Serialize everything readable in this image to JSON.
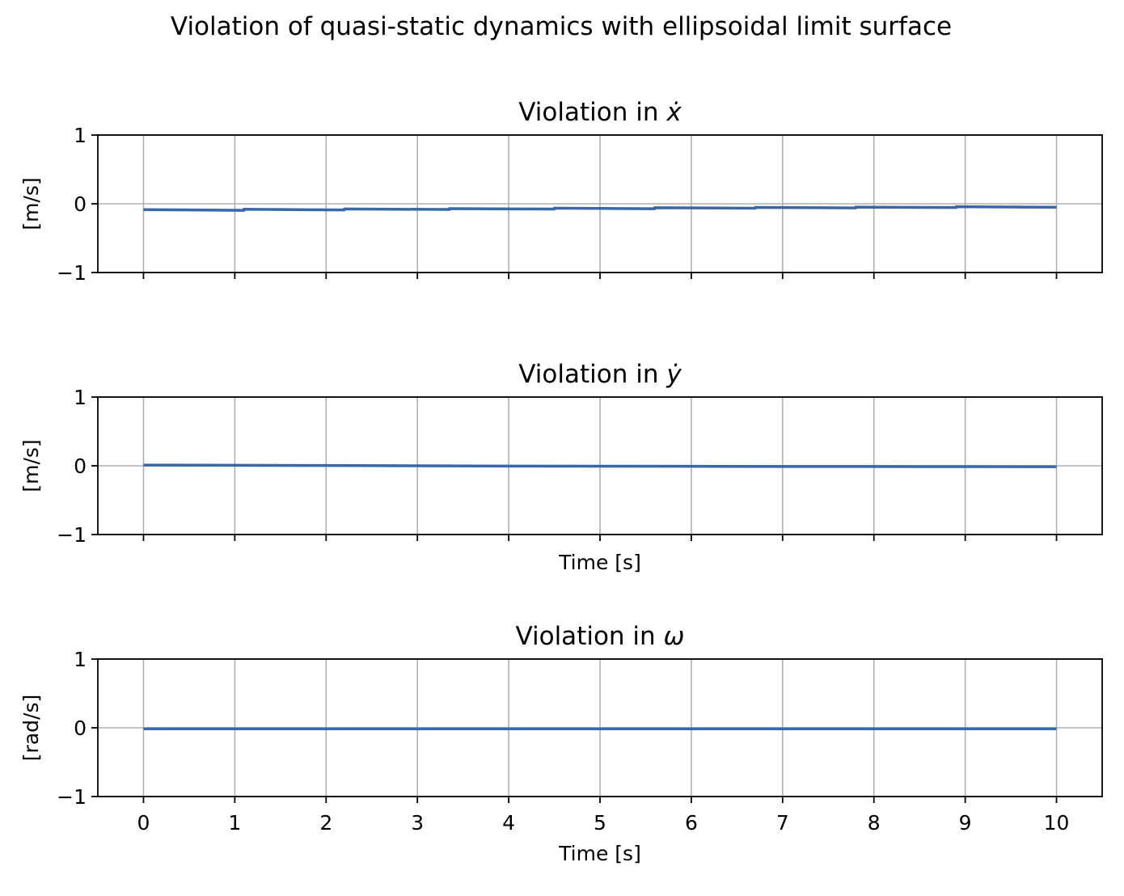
{
  "figure": {
    "title": "Violation of quasi-static dynamics with ellipsoidal limit surface"
  },
  "colors": {
    "line": "#3a67a8",
    "grid": "#b0b0b0",
    "axes": "#000000"
  },
  "chart_data": [
    {
      "type": "line",
      "title_prefix": "Violation in ",
      "title_symbol": "ẋ",
      "ylabel": "[m/s]",
      "xlabel": "",
      "xlim": [
        -0.5,
        10.5
      ],
      "ylim": [
        -1,
        1
      ],
      "xticks": [
        0,
        1,
        2,
        3,
        4,
        5,
        6,
        7,
        8,
        9,
        10
      ],
      "yticks": [
        -1,
        0,
        1
      ],
      "ytick_labels": [
        "−1",
        "0",
        "1"
      ],
      "show_x_tick_labels": false,
      "grid": true,
      "series": [
        {
          "x": [
            0,
            1.1,
            1.1,
            2.2,
            2.2,
            3.35,
            3.35,
            4.5,
            4.5,
            5.6,
            5.6,
            6.7,
            6.7,
            7.8,
            7.8,
            8.9,
            8.9,
            10
          ],
          "y": [
            -0.085,
            -0.095,
            -0.08,
            -0.09,
            -0.075,
            -0.083,
            -0.07,
            -0.077,
            -0.063,
            -0.072,
            -0.058,
            -0.065,
            -0.053,
            -0.06,
            -0.048,
            -0.055,
            -0.043,
            -0.05
          ]
        }
      ]
    },
    {
      "type": "line",
      "title_prefix": "Violation in ",
      "title_symbol": "ẏ",
      "ylabel": "[m/s]",
      "xlabel": "Time [s]",
      "xlim": [
        -0.5,
        10.5
      ],
      "ylim": [
        -1,
        1
      ],
      "xticks": [
        0,
        1,
        2,
        3,
        4,
        5,
        6,
        7,
        8,
        9,
        10
      ],
      "yticks": [
        -1,
        0,
        1
      ],
      "ytick_labels": [
        "−1",
        "0",
        "1"
      ],
      "show_x_tick_labels": false,
      "grid": true,
      "series": [
        {
          "x": [
            0,
            1,
            2,
            3,
            4,
            5,
            6,
            7,
            8,
            9,
            10
          ],
          "y": [
            0.01,
            0.008,
            0.004,
            0.0,
            -0.004,
            -0.006,
            -0.008,
            -0.01,
            -0.011,
            -0.012,
            -0.013
          ]
        }
      ]
    },
    {
      "type": "line",
      "title_prefix": "Violation in ",
      "title_symbol": "ω",
      "ylabel": "[rad/s]",
      "xlabel": "Time [s]",
      "xlim": [
        -0.5,
        10.5
      ],
      "ylim": [
        -1,
        1
      ],
      "xticks": [
        0,
        1,
        2,
        3,
        4,
        5,
        6,
        7,
        8,
        9,
        10
      ],
      "yticks": [
        -1,
        0,
        1
      ],
      "ytick_labels": [
        "−1",
        "0",
        "1"
      ],
      "show_x_tick_labels": true,
      "grid": true,
      "series": [
        {
          "x": [
            0,
            10
          ],
          "y": [
            -0.015,
            -0.015
          ]
        }
      ]
    }
  ]
}
